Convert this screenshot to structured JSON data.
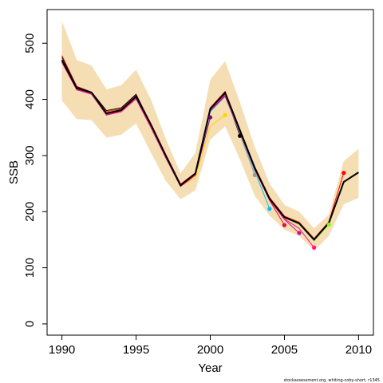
{
  "chart_data": {
    "type": "line",
    "title": "",
    "xlabel": "Year",
    "ylabel": "SSB",
    "xlim": [
      1989,
      2011
    ],
    "ylim": [
      -20,
      560
    ],
    "x_ticks": [
      1990,
      1995,
      2000,
      2005,
      2010
    ],
    "y_ticks": [
      0,
      100,
      200,
      300,
      400,
      500
    ],
    "grid": false,
    "credit": "stockassessment.org, whiting-coby-short, r1345",
    "colors": {
      "band": "#f5deb3",
      "final": "#000000",
      "peels": [
        "#ff0000",
        "#800080",
        "#ffd700",
        "#000000",
        "#999999",
        "#00bfff",
        "#dc143c",
        "#c71585",
        "#ff1493",
        "#7cfc00",
        "#9932cc"
      ]
    },
    "confidence_band": {
      "x": [
        1990,
        1991,
        1992,
        1993,
        1994,
        1995,
        1996,
        1997,
        1998,
        1999,
        2000,
        2001,
        2002,
        2003,
        2004,
        2005,
        2006,
        2007,
        2008,
        2009,
        2010
      ],
      "upper": [
        540,
        470,
        460,
        418,
        425,
        453,
        400,
        330,
        268,
        305,
        435,
        468,
        395,
        315,
        250,
        212,
        200,
        170,
        195,
        290,
        312
      ],
      "lower": [
        398,
        365,
        363,
        332,
        337,
        357,
        305,
        255,
        222,
        238,
        328,
        352,
        293,
        228,
        193,
        168,
        157,
        130,
        157,
        213,
        225
      ]
    },
    "final": {
      "x": [
        1990,
        1991,
        1992,
        1993,
        1994,
        1995,
        1996,
        1997,
        1998,
        1999,
        2000,
        2001,
        2002,
        2003,
        2004,
        2005,
        2006,
        2007,
        2008,
        2009,
        2010
      ],
      "y": [
        470,
        420,
        412,
        375,
        381,
        405,
        355,
        300,
        247,
        268,
        383,
        412,
        345,
        278,
        223,
        190,
        179,
        150,
        180,
        253,
        270
      ]
    },
    "series": [
      {
        "x": [
          1990,
          1991,
          1992,
          1993,
          1994,
          1995,
          1996,
          1997,
          1998,
          1999,
          2000,
          2001,
          2002,
          2003,
          2004,
          2005,
          2006,
          2007,
          2008,
          2009
        ],
        "y": [
          478,
          423,
          413,
          378,
          383,
          407,
          357,
          302,
          249,
          269,
          385,
          414,
          346,
          280,
          225,
          192,
          181,
          152,
          182,
          269
        ]
      },
      {
        "x": [
          1990,
          1991,
          1992,
          1993,
          1994,
          1995,
          1996,
          1997,
          1998,
          1999,
          2000
        ],
        "y": [
          466,
          417,
          410,
          372,
          379,
          401,
          350,
          296,
          245,
          265,
          368
        ]
      },
      {
        "x": [
          1990,
          1991,
          1992,
          1993,
          1994,
          1995,
          1996,
          1997,
          1998,
          1999,
          2000,
          2001
        ],
        "y": [
          470,
          420,
          412,
          377,
          382,
          405,
          352,
          298,
          246,
          260,
          352,
          372
        ]
      },
      {
        "x": [
          1990,
          1991,
          1992,
          1993,
          1994,
          1995,
          1996,
          1997,
          1998,
          1999,
          2000,
          2001,
          2002
        ],
        "y": [
          475,
          422,
          413,
          380,
          385,
          409,
          356,
          301,
          248,
          266,
          383,
          410,
          335
        ]
      },
      {
        "x": [
          1990,
          1991,
          1992,
          1993,
          1994,
          1995,
          1996,
          1997,
          1998,
          1999,
          2000,
          2001,
          2002,
          2003
        ],
        "y": [
          472,
          421,
          412,
          376,
          382,
          406,
          354,
          299,
          247,
          265,
          380,
          408,
          338,
          265
        ]
      },
      {
        "x": [
          1990,
          1991,
          1992,
          1993,
          1994,
          1995,
          1996,
          1997,
          1998,
          1999,
          2000,
          2001,
          2002,
          2003,
          2004
        ],
        "y": [
          468,
          419,
          411,
          374,
          380,
          403,
          352,
          298,
          246,
          266,
          378,
          405,
          340,
          272,
          205
        ]
      },
      {
        "x": [
          1990,
          1991,
          1992,
          1993,
          1994,
          1995,
          1996,
          1997,
          1998,
          1999,
          2000,
          2001,
          2002,
          2003,
          2004,
          2005
        ],
        "y": [
          469,
          418,
          410,
          373,
          379,
          402,
          351,
          297,
          245,
          265,
          380,
          406,
          341,
          275,
          220,
          176
        ]
      },
      {
        "x": [
          1990,
          1991,
          1992,
          1993,
          1994,
          1995,
          1996,
          1997,
          1998,
          1999,
          2000,
          2001,
          2002,
          2003,
          2004,
          2005,
          2006
        ],
        "y": [
          467,
          417,
          409,
          372,
          378,
          401,
          350,
          296,
          245,
          266,
          381,
          407,
          342,
          276,
          221,
          186,
          162
        ]
      },
      {
        "x": [
          1990,
          1991,
          1992,
          1993,
          1994,
          1995,
          1996,
          1997,
          1998,
          1999,
          2000,
          2001,
          2002,
          2003,
          2004,
          2005,
          2006,
          2007
        ],
        "y": [
          468,
          418,
          410,
          373,
          378,
          402,
          351,
          297,
          246,
          266,
          382,
          408,
          343,
          277,
          222,
          187,
          170,
          136
        ]
      },
      {
        "x": [
          1990,
          1991,
          1992,
          1993,
          1994,
          1995,
          1996,
          1997,
          1998,
          1999,
          2000,
          2001,
          2002,
          2003,
          2004,
          2005,
          2006,
          2007,
          2008
        ],
        "y": [
          471,
          421,
          412,
          376,
          381,
          405,
          355,
          300,
          247,
          268,
          383,
          411,
          344,
          278,
          223,
          189,
          177,
          148,
          177
        ]
      }
    ]
  }
}
